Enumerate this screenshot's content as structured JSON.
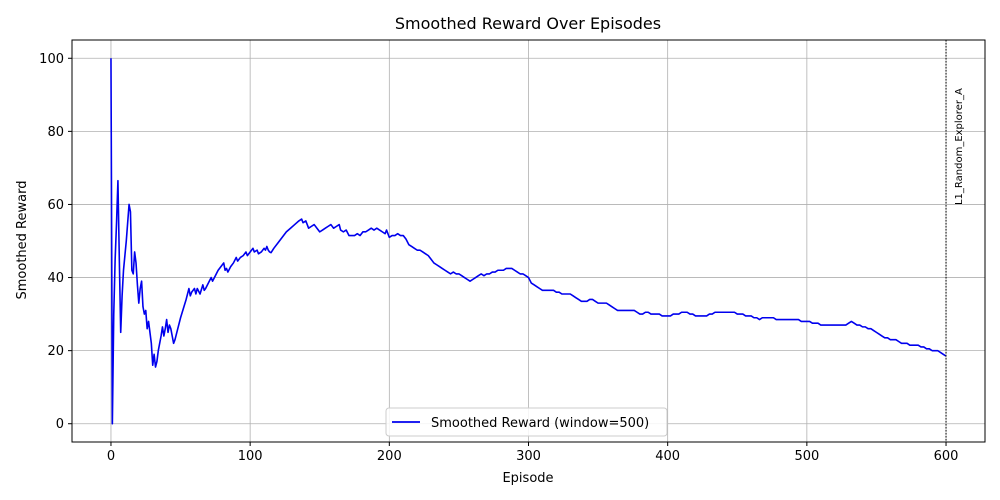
{
  "chart_data": {
    "type": "line",
    "title": "Smoothed Reward Over Episodes",
    "xlabel": "Episode",
    "ylabel": "Smoothed Reward",
    "xlim": [
      -28,
      628
    ],
    "ylim": [
      -5,
      105
    ],
    "xticks": [
      0,
      100,
      200,
      300,
      400,
      500,
      600
    ],
    "yticks": [
      0,
      20,
      40,
      60,
      80,
      100
    ],
    "grid": true,
    "legend_position": "bottom-center",
    "series": [
      {
        "name": "Smoothed Reward (window=500)",
        "color": "#0000ee",
        "points": [
          [
            0,
            100
          ],
          [
            1,
            0
          ],
          [
            2,
            30
          ],
          [
            3,
            45
          ],
          [
            4,
            55
          ],
          [
            5,
            66.5
          ],
          [
            6,
            45
          ],
          [
            7,
            25
          ],
          [
            8,
            35
          ],
          [
            9,
            42
          ],
          [
            10,
            46
          ],
          [
            11,
            50
          ],
          [
            12,
            55
          ],
          [
            13,
            60
          ],
          [
            14,
            58
          ],
          [
            15,
            42
          ],
          [
            16,
            41
          ],
          [
            17,
            47
          ],
          [
            18,
            44
          ],
          [
            19,
            38
          ],
          [
            20,
            33
          ],
          [
            21,
            37
          ],
          [
            22,
            39
          ],
          [
            23,
            32
          ],
          [
            24,
            30
          ],
          [
            25,
            31
          ],
          [
            26,
            26
          ],
          [
            27,
            28
          ],
          [
            28,
            25
          ],
          [
            29,
            22
          ],
          [
            30,
            16
          ],
          [
            31,
            19
          ],
          [
            32,
            15.5
          ],
          [
            33,
            17
          ],
          [
            34,
            20
          ],
          [
            35,
            22
          ],
          [
            36,
            24
          ],
          [
            37,
            26.5
          ],
          [
            38,
            24
          ],
          [
            39,
            26
          ],
          [
            40,
            28.5
          ],
          [
            41,
            25
          ],
          [
            42,
            27
          ],
          [
            43,
            26
          ],
          [
            44,
            24
          ],
          [
            45,
            22
          ],
          [
            46,
            23
          ],
          [
            48,
            26
          ],
          [
            50,
            29
          ],
          [
            52,
            31.5
          ],
          [
            54,
            34
          ],
          [
            56,
            37
          ],
          [
            57,
            35
          ],
          [
            58,
            36
          ],
          [
            60,
            37
          ],
          [
            61,
            35.5
          ],
          [
            62,
            37
          ],
          [
            64,
            35.5
          ],
          [
            66,
            38
          ],
          [
            67,
            36.5
          ],
          [
            68,
            37
          ],
          [
            70,
            38.5
          ],
          [
            72,
            40
          ],
          [
            73,
            39
          ],
          [
            75,
            40.5
          ],
          [
            77,
            42
          ],
          [
            79,
            43
          ],
          [
            81,
            44
          ],
          [
            82,
            42
          ],
          [
            83,
            42.5
          ],
          [
            84,
            41.5
          ],
          [
            86,
            43
          ],
          [
            88,
            44
          ],
          [
            90,
            45.5
          ],
          [
            91,
            44.5
          ],
          [
            93,
            45.5
          ],
          [
            95,
            46
          ],
          [
            97,
            47
          ],
          [
            98,
            46
          ],
          [
            100,
            47
          ],
          [
            102,
            48
          ],
          [
            103,
            47
          ],
          [
            105,
            47.5
          ],
          [
            106,
            46.5
          ],
          [
            108,
            47
          ],
          [
            110,
            48
          ],
          [
            111,
            47.5
          ],
          [
            112,
            48.5
          ],
          [
            113,
            47.5
          ],
          [
            114,
            47
          ],
          [
            115,
            46.8
          ],
          [
            117,
            48
          ],
          [
            120,
            49.5
          ],
          [
            123,
            51
          ],
          [
            126,
            52.5
          ],
          [
            129,
            53.5
          ],
          [
            132,
            54.5
          ],
          [
            135,
            55.5
          ],
          [
            137,
            56
          ],
          [
            138,
            55
          ],
          [
            140,
            55.5
          ],
          [
            142,
            53.5
          ],
          [
            144,
            54
          ],
          [
            146,
            54.5
          ],
          [
            148,
            53.5
          ],
          [
            150,
            52.5
          ],
          [
            152,
            53
          ],
          [
            154,
            53.5
          ],
          [
            156,
            54
          ],
          [
            158,
            54.5
          ],
          [
            160,
            53.5
          ],
          [
            162,
            54
          ],
          [
            164,
            54.5
          ],
          [
            165,
            53
          ],
          [
            167,
            52.5
          ],
          [
            169,
            53
          ],
          [
            171,
            51.5
          ],
          [
            173,
            51.5
          ],
          [
            175,
            51.5
          ],
          [
            177,
            52
          ],
          [
            179,
            51.5
          ],
          [
            181,
            52.5
          ],
          [
            183,
            52.5
          ],
          [
            185,
            53
          ],
          [
            187,
            53.5
          ],
          [
            189,
            53
          ],
          [
            191,
            53.5
          ],
          [
            193,
            53
          ],
          [
            195,
            52.5
          ],
          [
            197,
            52
          ],
          [
            198,
            53
          ],
          [
            200,
            51
          ],
          [
            202,
            51.5
          ],
          [
            204,
            51.5
          ],
          [
            206,
            52
          ],
          [
            208,
            51.5
          ],
          [
            210,
            51.5
          ],
          [
            212,
            50.5
          ],
          [
            214,
            49
          ],
          [
            216,
            48.5
          ],
          [
            218,
            48
          ],
          [
            220,
            47.5
          ],
          [
            222,
            47.5
          ],
          [
            224,
            47
          ],
          [
            226,
            46.5
          ],
          [
            228,
            46
          ],
          [
            230,
            45
          ],
          [
            232,
            44
          ],
          [
            234,
            43.5
          ],
          [
            236,
            43
          ],
          [
            238,
            42.5
          ],
          [
            240,
            42
          ],
          [
            242,
            41.5
          ],
          [
            244,
            41
          ],
          [
            246,
            41.5
          ],
          [
            248,
            41
          ],
          [
            250,
            41
          ],
          [
            252,
            40.5
          ],
          [
            254,
            40
          ],
          [
            256,
            39.5
          ],
          [
            258,
            39
          ],
          [
            260,
            39.5
          ],
          [
            262,
            40
          ],
          [
            264,
            40.5
          ],
          [
            266,
            41
          ],
          [
            268,
            40.5
          ],
          [
            270,
            41
          ],
          [
            272,
            41
          ],
          [
            274,
            41.5
          ],
          [
            276,
            41.5
          ],
          [
            278,
            42
          ],
          [
            280,
            42
          ],
          [
            282,
            42
          ],
          [
            284,
            42.5
          ],
          [
            286,
            42.5
          ],
          [
            288,
            42.5
          ],
          [
            290,
            42
          ],
          [
            292,
            41.5
          ],
          [
            294,
            41
          ],
          [
            296,
            41
          ],
          [
            298,
            40.5
          ],
          [
            300,
            40
          ],
          [
            302,
            38.5
          ],
          [
            304,
            38
          ],
          [
            306,
            37.5
          ],
          [
            308,
            37
          ],
          [
            310,
            36.5
          ],
          [
            312,
            36.5
          ],
          [
            314,
            36.5
          ],
          [
            316,
            36.5
          ],
          [
            318,
            36.5
          ],
          [
            320,
            36
          ],
          [
            322,
            36
          ],
          [
            324,
            35.5
          ],
          [
            326,
            35.5
          ],
          [
            328,
            35.5
          ],
          [
            330,
            35.5
          ],
          [
            332,
            35
          ],
          [
            334,
            34.5
          ],
          [
            336,
            34
          ],
          [
            338,
            33.5
          ],
          [
            340,
            33.5
          ],
          [
            342,
            33.5
          ],
          [
            344,
            34
          ],
          [
            346,
            34
          ],
          [
            348,
            33.5
          ],
          [
            350,
            33
          ],
          [
            352,
            33
          ],
          [
            354,
            33
          ],
          [
            356,
            33
          ],
          [
            358,
            32.5
          ],
          [
            360,
            32
          ],
          [
            362,
            31.5
          ],
          [
            364,
            31
          ],
          [
            366,
            31
          ],
          [
            368,
            31
          ],
          [
            370,
            31
          ],
          [
            372,
            31
          ],
          [
            374,
            31
          ],
          [
            376,
            31
          ],
          [
            378,
            30.5
          ],
          [
            380,
            30
          ],
          [
            382,
            30
          ],
          [
            384,
            30.5
          ],
          [
            386,
            30.5
          ],
          [
            388,
            30
          ],
          [
            390,
            30
          ],
          [
            392,
            30
          ],
          [
            394,
            30
          ],
          [
            396,
            29.5
          ],
          [
            398,
            29.5
          ],
          [
            400,
            29.5
          ],
          [
            402,
            29.5
          ],
          [
            404,
            30
          ],
          [
            406,
            30
          ],
          [
            408,
            30
          ],
          [
            410,
            30.5
          ],
          [
            412,
            30.5
          ],
          [
            414,
            30.5
          ],
          [
            416,
            30
          ],
          [
            418,
            30
          ],
          [
            420,
            29.5
          ],
          [
            422,
            29.5
          ],
          [
            424,
            29.5
          ],
          [
            426,
            29.5
          ],
          [
            428,
            29.5
          ],
          [
            430,
            30
          ],
          [
            432,
            30
          ],
          [
            434,
            30.5
          ],
          [
            436,
            30.5
          ],
          [
            438,
            30.5
          ],
          [
            440,
            30.5
          ],
          [
            442,
            30.5
          ],
          [
            444,
            30.5
          ],
          [
            446,
            30.5
          ],
          [
            448,
            30.5
          ],
          [
            450,
            30
          ],
          [
            452,
            30
          ],
          [
            454,
            30
          ],
          [
            456,
            29.5
          ],
          [
            458,
            29.5
          ],
          [
            460,
            29.5
          ],
          [
            462,
            29
          ],
          [
            464,
            29
          ],
          [
            466,
            28.5
          ],
          [
            468,
            29
          ],
          [
            470,
            29
          ],
          [
            472,
            29
          ],
          [
            474,
            29
          ],
          [
            476,
            29
          ],
          [
            478,
            28.5
          ],
          [
            480,
            28.5
          ],
          [
            482,
            28.5
          ],
          [
            484,
            28.5
          ],
          [
            486,
            28.5
          ],
          [
            488,
            28.5
          ],
          [
            490,
            28.5
          ],
          [
            492,
            28.5
          ],
          [
            494,
            28.5
          ],
          [
            496,
            28
          ],
          [
            498,
            28
          ],
          [
            500,
            28
          ],
          [
            502,
            28
          ],
          [
            504,
            27.5
          ],
          [
            506,
            27.5
          ],
          [
            508,
            27.5
          ],
          [
            510,
            27
          ],
          [
            512,
            27
          ],
          [
            514,
            27
          ],
          [
            516,
            27
          ],
          [
            518,
            27
          ],
          [
            520,
            27
          ],
          [
            522,
            27
          ],
          [
            524,
            27
          ],
          [
            526,
            27
          ],
          [
            528,
            27
          ],
          [
            530,
            27.5
          ],
          [
            532,
            28
          ],
          [
            534,
            27.5
          ],
          [
            536,
            27
          ],
          [
            538,
            27
          ],
          [
            540,
            26.5
          ],
          [
            542,
            26.5
          ],
          [
            544,
            26
          ],
          [
            546,
            26
          ],
          [
            548,
            25.5
          ],
          [
            550,
            25
          ],
          [
            552,
            24.5
          ],
          [
            554,
            24
          ],
          [
            556,
            23.5
          ],
          [
            558,
            23.5
          ],
          [
            560,
            23
          ],
          [
            562,
            23
          ],
          [
            564,
            23
          ],
          [
            566,
            22.5
          ],
          [
            568,
            22
          ],
          [
            570,
            22
          ],
          [
            572,
            22
          ],
          [
            574,
            21.5
          ],
          [
            576,
            21.5
          ],
          [
            578,
            21.5
          ],
          [
            580,
            21.5
          ],
          [
            582,
            21
          ],
          [
            584,
            21
          ],
          [
            586,
            20.5
          ],
          [
            588,
            20.5
          ],
          [
            590,
            20
          ],
          [
            592,
            20
          ],
          [
            594,
            20
          ],
          [
            596,
            19.5
          ],
          [
            598,
            19
          ],
          [
            600,
            18.5
          ]
        ]
      }
    ],
    "annotations": [
      {
        "type": "vline",
        "x": 600,
        "label": "L1_Random_Explorer_A",
        "style": "dotted",
        "color": "#000000"
      }
    ]
  }
}
